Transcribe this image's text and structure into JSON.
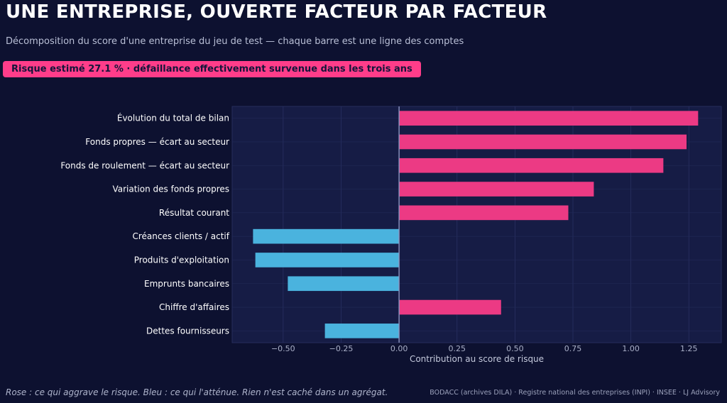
{
  "header": {
    "title": "UNE ENTREPRISE, OUVERTE FACTEUR PAR FACTEUR",
    "subtitle": "Décomposition du score d'une entreprise du jeu de test — chaque barre est une ligne des comptes",
    "badge": "Risque estimé 27.1 %  ·  défaillance effectivement survenue dans les trois ans"
  },
  "footer": {
    "note": "Rose : ce qui aggrave le risque. Bleu : ce qui l'atténue. Rien n'est caché dans un agrégat.",
    "sources": "BODACC (archives DILA) · Registre national des entreprises (INPI) · INSEE  ·  LJ Advisory"
  },
  "colors": {
    "background": "#0d1130",
    "plot_background": "#161c45",
    "positive": "#ec3a84",
    "negative": "#4ab3de",
    "zero_line": "#8e95c0",
    "badge": "#ff3d8a"
  },
  "chart_data": {
    "type": "bar",
    "orientation": "horizontal",
    "title": "",
    "xlabel": "Contribution au score de risque",
    "ylabel": "",
    "xlim": [
      -0.72,
      1.39
    ],
    "xticks": [
      -0.5,
      -0.25,
      0.0,
      0.25,
      0.5,
      0.75,
      1.0,
      1.25
    ],
    "xtick_labels": [
      "−0.50",
      "−0.25",
      "0.00",
      "0.25",
      "0.50",
      "0.75",
      "1.00",
      "1.25"
    ],
    "grid": true,
    "categories": [
      "Évolution du total de bilan",
      "Fonds propres — écart au secteur",
      "Fonds de roulement — écart au secteur",
      "Variation des fonds propres",
      "Résultat courant",
      "Créances clients / actif",
      "Produits d'exploitation",
      "Emprunts bancaires",
      "Chiffre d'affaires",
      "Dettes fournisseurs"
    ],
    "values": [
      1.29,
      1.24,
      1.14,
      0.84,
      0.73,
      -0.63,
      -0.62,
      -0.48,
      0.44,
      -0.32
    ]
  }
}
